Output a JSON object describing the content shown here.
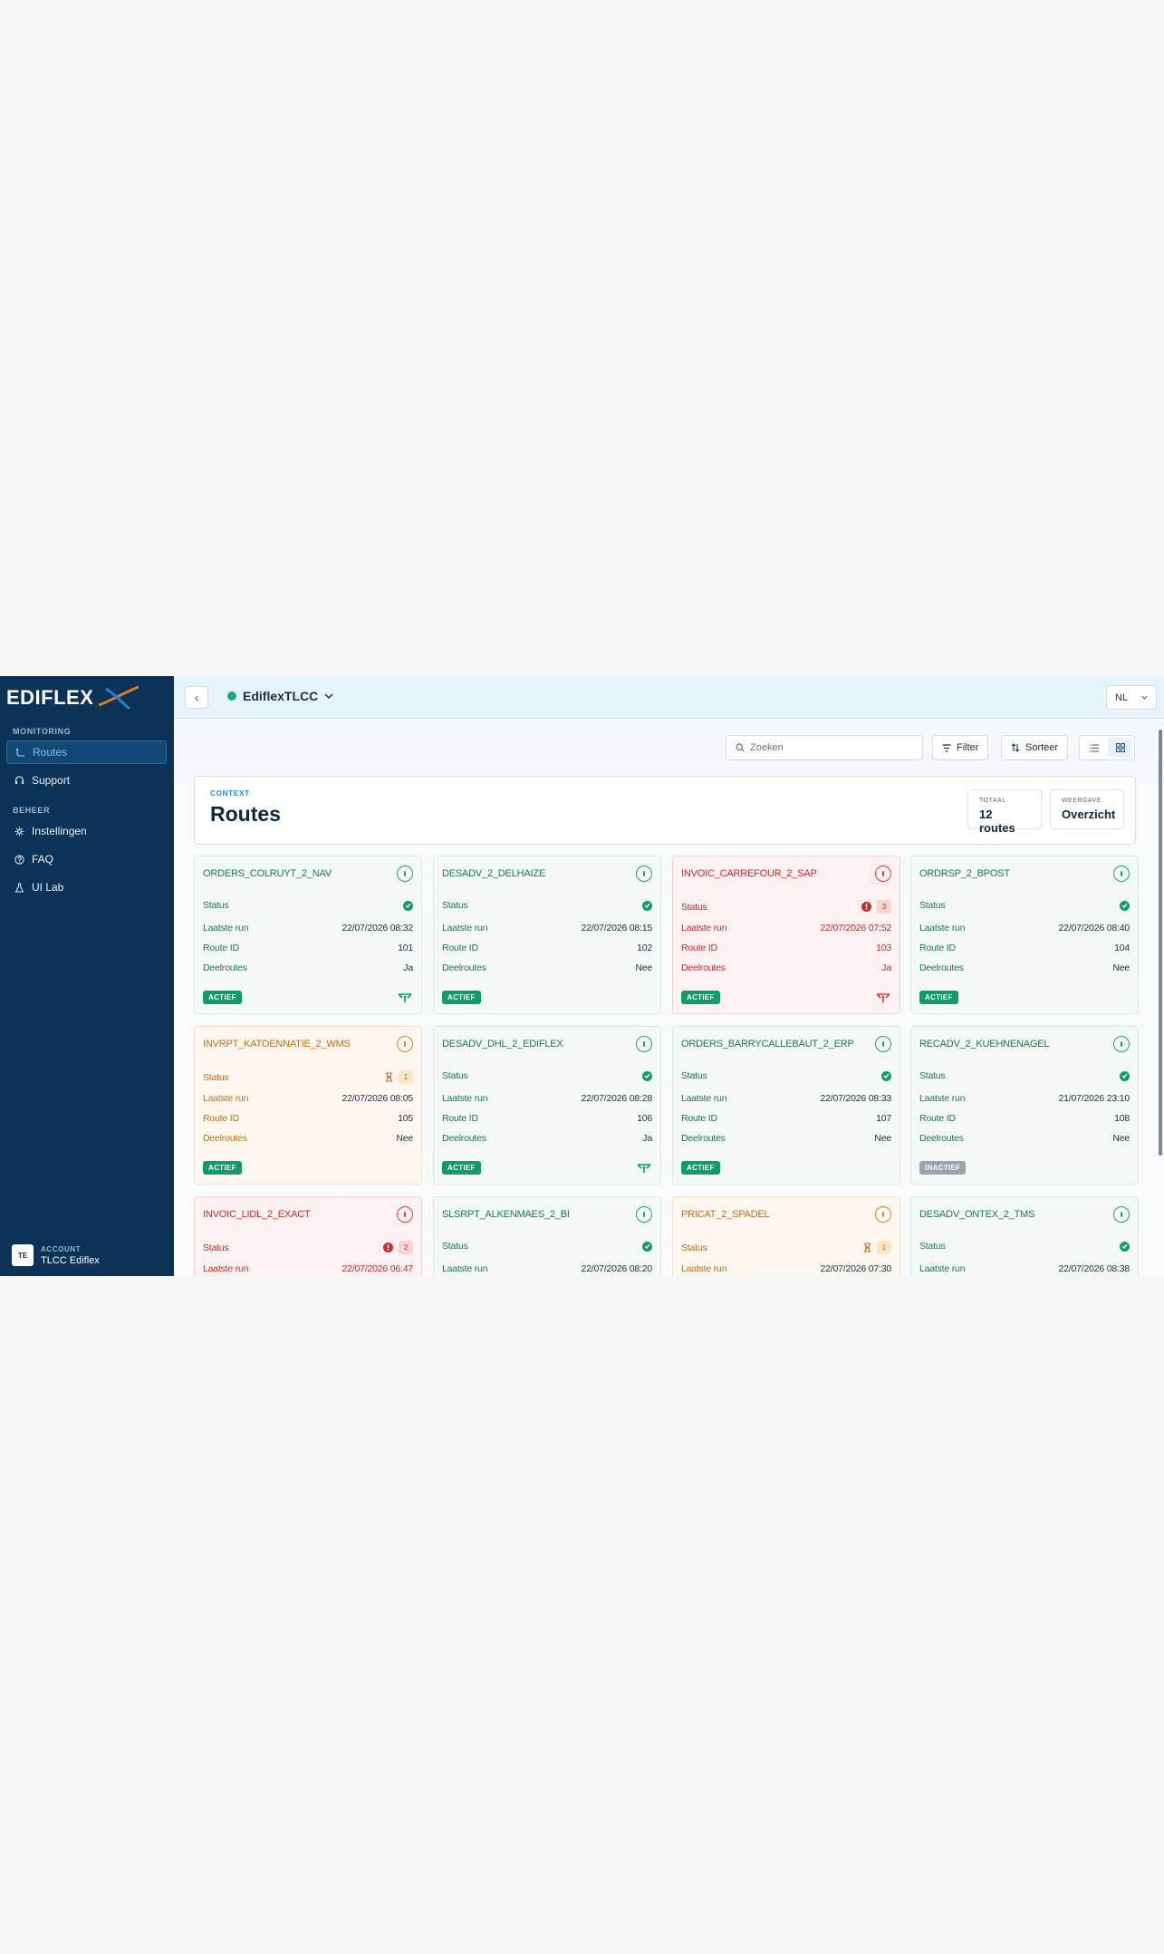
{
  "brand": {
    "name": "EDIFLEX"
  },
  "sidebar": {
    "sections": [
      {
        "label": "MONITORING",
        "items": [
          {
            "label": "Routes",
            "icon": "route-icon",
            "active": true
          },
          {
            "label": "Support",
            "icon": "headset-icon"
          }
        ]
      },
      {
        "label": "BEHEER",
        "items": [
          {
            "label": "Instellingen",
            "icon": "gear-icon"
          },
          {
            "label": "FAQ",
            "icon": "question-icon"
          },
          {
            "label": "UI Lab",
            "icon": "flask-icon"
          }
        ]
      }
    ],
    "account": {
      "label": "ACCOUNT",
      "initials": "TE",
      "name": "TLCC Ediflex"
    }
  },
  "topbar": {
    "back_icon": "‹",
    "tenant": "EdiflexTLCC",
    "language": "NL"
  },
  "toolbar": {
    "search_placeholder": "Zoeken",
    "filter_label": "Filter",
    "sort_label": "Sorteer"
  },
  "context": {
    "label": "CONTEXT",
    "title": "Routes",
    "total_label": "TOTAAL",
    "total_value": "12 routes",
    "view_label": "WEERGAVE",
    "view_value": "Overzicht"
  },
  "field_labels": {
    "status": "Status",
    "last_run": "Laatste run",
    "route_id": "Route ID",
    "subroutes": "Deelroutes"
  },
  "routes": [
    {
      "name": "ORDERS_COLRUYT_2_NAV",
      "tone": "g",
      "status": "ok",
      "last_run": "22/07/2026 08:32",
      "route_id": "101",
      "subroutes": "Ja",
      "state": "ACTIEF",
      "has_sub": true
    },
    {
      "name": "DESADV_2_DELHAIZE",
      "tone": "g",
      "status": "ok",
      "last_run": "22/07/2026 08:15",
      "route_id": "102",
      "subroutes": "Nee",
      "state": "ACTIEF",
      "has_sub": false
    },
    {
      "name": "INVOIC_CARREFOUR_2_SAP",
      "tone": "r",
      "status": "error",
      "count": "3",
      "last_run": "22/07/2026 07:52",
      "route_id": "103",
      "subroutes": "Ja",
      "state": "ACTIEF",
      "has_sub": true
    },
    {
      "name": "ORDRSP_2_BPOST",
      "tone": "g",
      "status": "ok",
      "last_run": "22/07/2026 08:40",
      "route_id": "104",
      "subroutes": "Nee",
      "state": "ACTIEF",
      "has_sub": false
    },
    {
      "name": "INVRPT_KATOENNATIE_2_WMS",
      "tone": "o",
      "status": "pending",
      "count": "1",
      "last_run": "22/07/2026 08:05",
      "route_id": "105",
      "subroutes": "Nee",
      "state": "ACTIEF",
      "has_sub": false
    },
    {
      "name": "DESADV_DHL_2_EDIFLEX",
      "tone": "g",
      "status": "ok",
      "last_run": "22/07/2026 08:28",
      "route_id": "106",
      "subroutes": "Ja",
      "state": "ACTIEF",
      "has_sub": true
    },
    {
      "name": "ORDERS_BARRYCALLEBAUT_2_ERP",
      "tone": "g",
      "status": "ok",
      "last_run": "22/07/2026 08:33",
      "route_id": "107",
      "subroutes": "Nee",
      "state": "ACTIEF",
      "has_sub": false
    },
    {
      "name": "RECADV_2_KUEHNENAGEL",
      "tone": "g",
      "status": "ok",
      "last_run": "21/07/2026 23:10",
      "route_id": "108",
      "subroutes": "Nee",
      "state": "INACTIEF",
      "has_sub": false
    },
    {
      "name": "INVOIC_LIDL_2_EXACT",
      "tone": "r",
      "status": "error",
      "count": "2",
      "last_run": "22/07/2026 06:47",
      "route_id": "",
      "subroutes": "",
      "state": "",
      "has_sub": false
    },
    {
      "name": "SLSRPT_ALKENMAES_2_BI",
      "tone": "g",
      "status": "ok",
      "last_run": "22/07/2026 08:20",
      "route_id": "",
      "subroutes": "",
      "state": "",
      "has_sub": false
    },
    {
      "name": "PRICAT_2_SPADEL",
      "tone": "o",
      "status": "pending",
      "count": "1",
      "last_run": "22/07/2026 07:30",
      "route_id": "",
      "subroutes": "",
      "state": "",
      "has_sub": false
    },
    {
      "name": "DESADV_ONTEX_2_TMS",
      "tone": "g",
      "status": "ok",
      "last_run": "22/07/2026 08:38",
      "route_id": "",
      "subroutes": "",
      "state": "",
      "has_sub": false
    }
  ],
  "colors": {
    "sidebar": "#0a3357",
    "active_green": "#0f9b6a",
    "inactive_gray": "#9aa4ad",
    "error_red": "#c42f2f",
    "pending_orange": "#c0701b"
  }
}
